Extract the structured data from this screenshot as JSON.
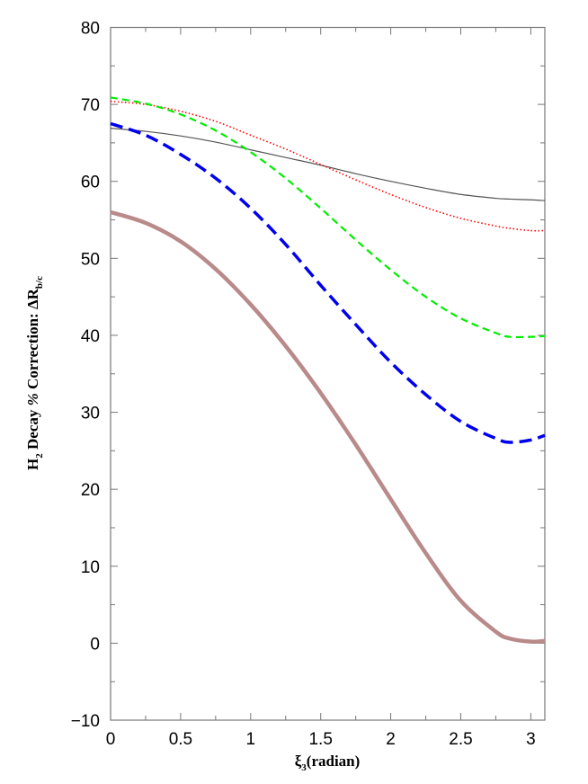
{
  "chart_data": {
    "type": "line",
    "title": "",
    "xlabel": "ξ3(radian)",
    "ylabel": "H2 Decay % Correction:  ΔRb/c",
    "xlim": [
      0,
      3.1
    ],
    "ylim": [
      -10,
      80
    ],
    "xticks": [
      0,
      0.5,
      1,
      1.5,
      2,
      2.5,
      3
    ],
    "xtick_labels": [
      "0",
      "0.5",
      "1",
      "1.5",
      "2",
      "2.5",
      "3"
    ],
    "yticks": [
      -10,
      0,
      10,
      20,
      30,
      40,
      50,
      60,
      70,
      80
    ],
    "ytick_labels": [
      "−10",
      "0",
      "10",
      "20",
      "30",
      "40",
      "50",
      "60",
      "70",
      "80"
    ],
    "grid": false,
    "legend": null,
    "x": [
      0,
      0.25,
      0.5,
      0.75,
      1.0,
      1.25,
      1.5,
      1.75,
      2.0,
      2.25,
      2.5,
      2.75,
      2.85,
      3.0,
      3.1
    ],
    "series": [
      {
        "name": "black-solid-thin",
        "color": "#555555",
        "style": "solid",
        "width": 1.2,
        "values": [
          66.9,
          66.5,
          65.9,
          65.1,
          64.1,
          63.1,
          62.1,
          61.0,
          60.0,
          59.1,
          58.3,
          57.8,
          57.7,
          57.6,
          57.5
        ]
      },
      {
        "name": "red-dotted",
        "color": "#ff0000",
        "style": "dotted",
        "width": 1.6,
        "values": [
          70.4,
          70.0,
          69.1,
          67.8,
          66.0,
          64.2,
          62.2,
          60.2,
          58.3,
          56.6,
          55.2,
          54.2,
          53.9,
          53.6,
          53.6
        ]
      },
      {
        "name": "green-dashed",
        "color": "#00ee00",
        "style": "dashed",
        "width": 2.2,
        "values": [
          70.9,
          70.1,
          68.7,
          66.6,
          63.8,
          60.4,
          56.5,
          52.4,
          48.5,
          45.0,
          42.2,
          40.3,
          39.8,
          39.8,
          39.9
        ]
      },
      {
        "name": "blue-long-dashed",
        "color": "#0000ee",
        "style": "long-dashed",
        "width": 3.5,
        "values": [
          67.5,
          66.0,
          63.5,
          60.4,
          56.5,
          51.8,
          46.5,
          41.4,
          36.5,
          32.3,
          28.8,
          26.6,
          26.1,
          26.4,
          27.0
        ]
      },
      {
        "name": "brown-solid-thick",
        "color": "#b98a8a",
        "style": "solid",
        "width": 4.5,
        "values": [
          56.0,
          54.6,
          52.2,
          48.6,
          44.0,
          38.6,
          32.5,
          25.8,
          18.7,
          11.7,
          5.5,
          1.5,
          0.6,
          0.2,
          0.3
        ]
      }
    ]
  }
}
